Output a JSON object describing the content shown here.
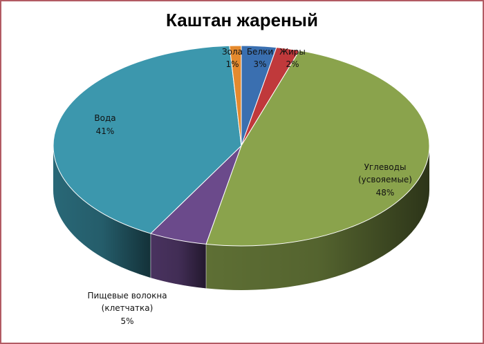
{
  "chart_data": {
    "type": "pie",
    "title": "Каштан жареный",
    "slices": [
      {
        "name": "Белки",
        "value": 3,
        "label": "3%",
        "color": "#3a6fb0"
      },
      {
        "name": "Жиры",
        "value": 2,
        "label": "2%",
        "color": "#c0393b"
      },
      {
        "name": "Углеводы (усвояемые)",
        "line1": "Углеводы",
        "line2": "(усвояемые)",
        "value": 48,
        "label": "48%",
        "color": "#8aa34c"
      },
      {
        "name": "Пищевые волокна (клетчатка)",
        "line1": "Пищевые волокна",
        "line2": "(клетчатка)",
        "value": 5,
        "label": "5%",
        "color": "#6b4a8b"
      },
      {
        "name": "Вода",
        "value": 41,
        "label": "41%",
        "color": "#3c97ad"
      },
      {
        "name": "Зола",
        "value": 1,
        "label": "1%",
        "color": "#e58a2e"
      }
    ],
    "style": "3d-pie",
    "legend": "none"
  }
}
